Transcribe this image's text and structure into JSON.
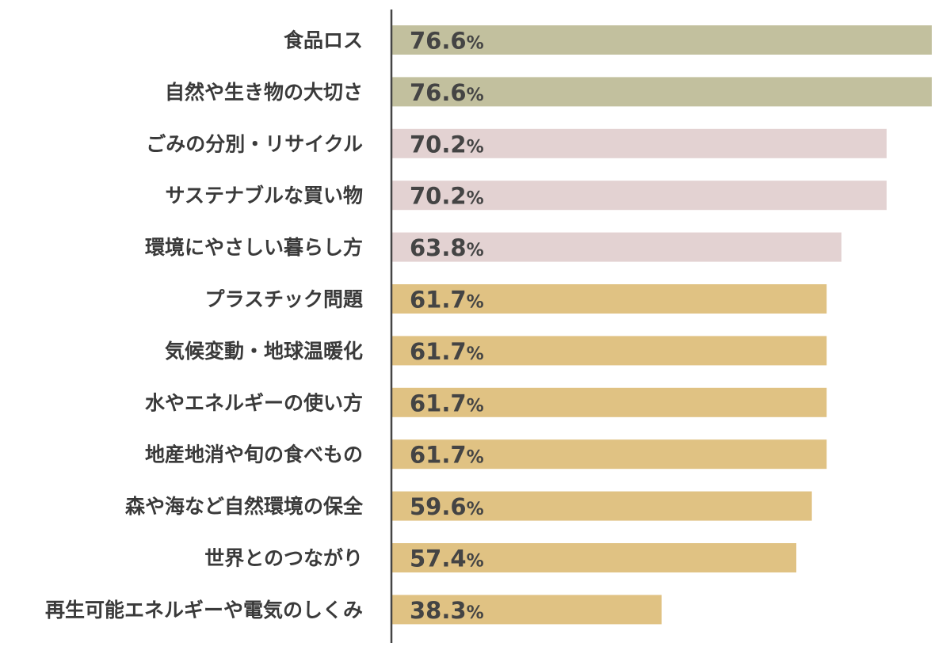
{
  "chart_data": {
    "type": "bar",
    "orientation": "horizontal",
    "categories": [
      "食品ロス",
      "自然や生き物の大切さ",
      "ごみの分別・リサイクル",
      "サステナブルな買い物",
      "環境にやさしい暮らし方",
      "プラスチック問題",
      "気候変動・地球温暖化",
      "水やエネルギーの使い方",
      "地産地消や旬の食べもの",
      "森や海など自然環境の保全",
      "世界とのつながり",
      "再生可能エネルギーや電気のしくみ"
    ],
    "values": [
      76.6,
      76.6,
      70.2,
      70.2,
      63.8,
      61.7,
      61.7,
      61.7,
      61.7,
      59.6,
      57.4,
      38.3
    ],
    "value_suffix": "%",
    "bar_colors": [
      "#c2c09e",
      "#c2c09e",
      "#e3d2d2",
      "#e3d2d2",
      "#e3d2d2",
      "#e0c283",
      "#e0c283",
      "#e0c283",
      "#e0c283",
      "#e0c283",
      "#e0c283",
      "#e0c283"
    ],
    "xlim": [
      0,
      76.6
    ],
    "grid": false,
    "title": "",
    "xlabel": "",
    "ylabel": ""
  }
}
